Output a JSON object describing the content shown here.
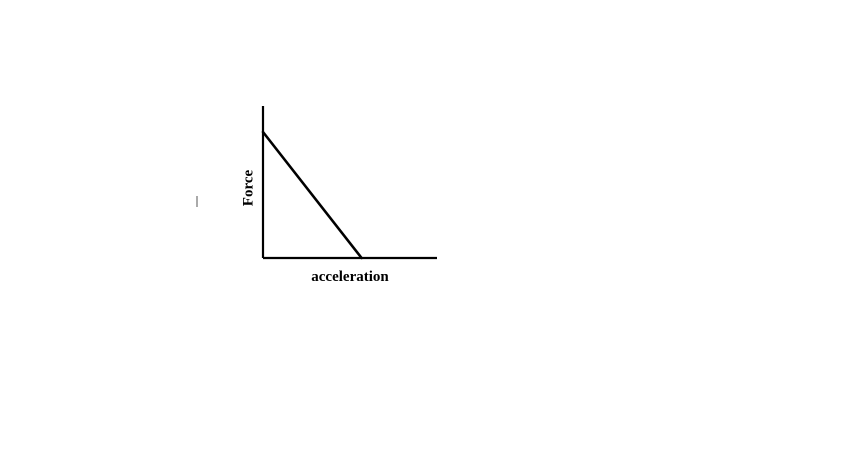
{
  "chart_data": {
    "type": "line",
    "title": "",
    "xlabel": "acceleration",
    "ylabel": "Force",
    "grid": false,
    "legend": "none",
    "x_ticks": [],
    "y_ticks": [],
    "xlim": [
      0,
      1
    ],
    "ylim": [
      0,
      1
    ],
    "series": [
      {
        "x": [
          0,
          0.58
        ],
        "y": [
          0.84,
          0
        ]
      }
    ]
  },
  "colors": {
    "line": "#000000",
    "axes": "#000000",
    "background": "#ffffff"
  }
}
